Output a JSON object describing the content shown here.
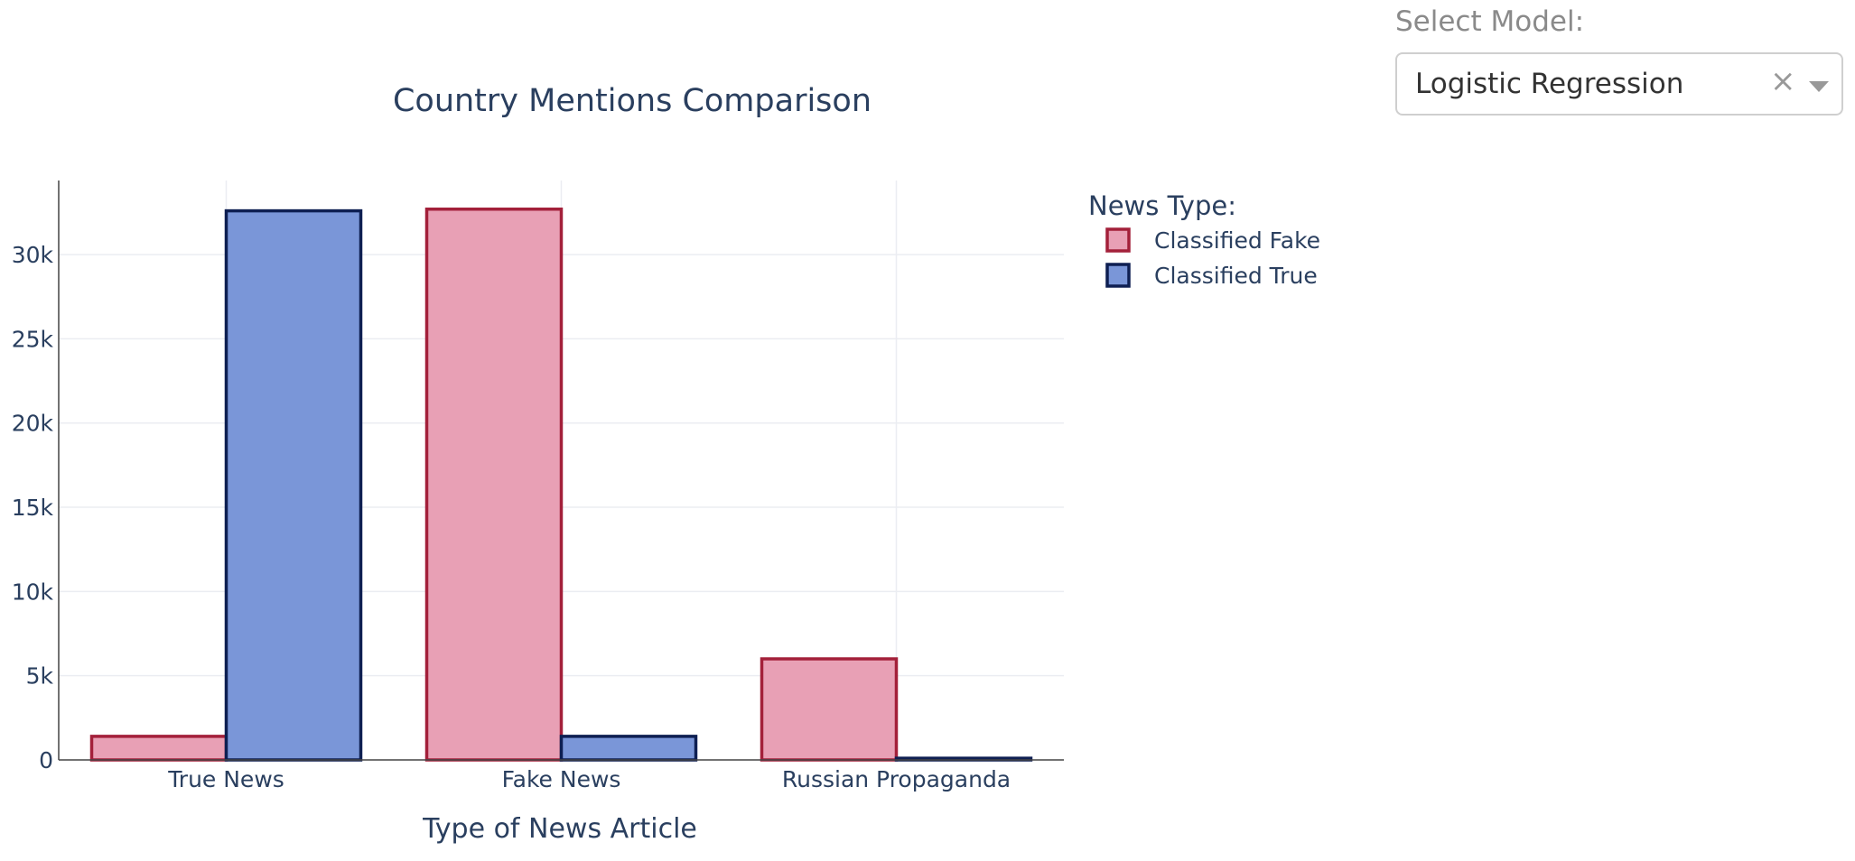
{
  "control": {
    "label": "Select Model:",
    "selected": "Logistic Regression",
    "clear_symbol": "×"
  },
  "chart_data": {
    "type": "bar",
    "title": "Country Mentions Comparison",
    "xlabel": "Type of News Article",
    "ylabel": "",
    "categories": [
      "True News",
      "Fake News",
      "Russian Propaganda"
    ],
    "series": [
      {
        "name": "Classified Fake",
        "values": [
          1400,
          32700,
          6000
        ],
        "fill": "#e8a0b5",
        "stroke": "#a3203a"
      },
      {
        "name": "Classified True",
        "values": [
          32600,
          1400,
          100
        ],
        "fill": "#7a96d8",
        "stroke": "#0e1f52"
      }
    ],
    "ylim": [
      0,
      34400
    ],
    "yticks": [
      0,
      5000,
      10000,
      15000,
      20000,
      25000,
      30000
    ],
    "ytick_labels": [
      "0",
      "5k",
      "10k",
      "15k",
      "20k",
      "25k",
      "30k"
    ],
    "legend": {
      "title": "News Type:",
      "placement": "top-right"
    },
    "grid": true,
    "colors": {
      "text": "#2a3f5f",
      "grid": "#ebedf2",
      "axis": "#444444"
    }
  }
}
